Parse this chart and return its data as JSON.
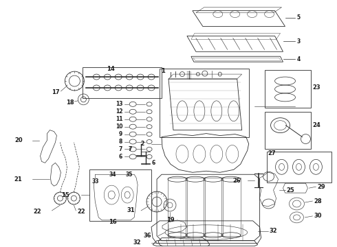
{
  "background_color": "#ffffff",
  "line_color": "#2a2a2a",
  "text_color": "#1a1a1a",
  "fig_width": 4.9,
  "fig_height": 3.6,
  "dpi": 100,
  "label_fontsize": 5.5,
  "line_width": 0.6
}
